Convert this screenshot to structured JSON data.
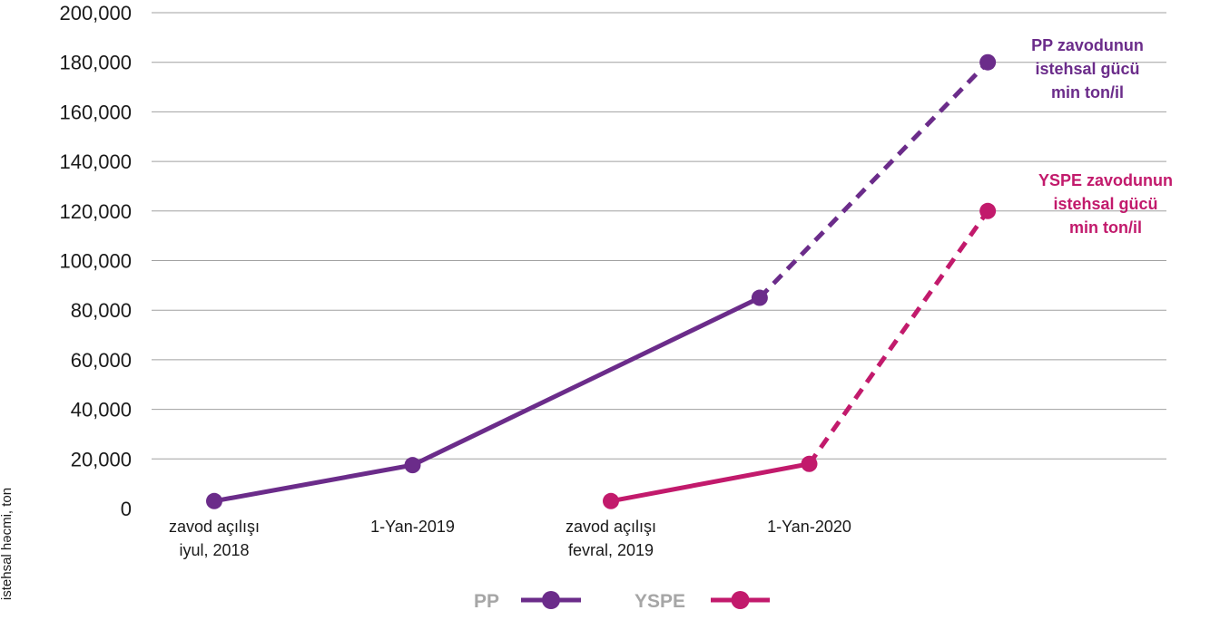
{
  "chart_data": {
    "type": "line",
    "ylabel": "istehsal həcmi, ton",
    "ylim": [
      0,
      200000
    ],
    "yticks": [
      "200,000",
      "180,000",
      "160,000",
      "140,000",
      "120,000",
      "100,000",
      "80,000",
      "60,000",
      "40,000",
      "20,000",
      "0"
    ],
    "grid": true,
    "legend_position": "bottom",
    "categories": [
      [
        "zavod açılışı",
        "iyul, 2018"
      ],
      [
        "1-Yan-2019"
      ],
      [
        "zavod açılışı",
        "fevral, 2019"
      ],
      [
        "1-Yan-2020"
      ]
    ],
    "series": [
      {
        "name": "PP",
        "color": "#6b2c8a",
        "actual": [
          {
            "x": 0,
            "y": 3000
          },
          {
            "x": 1,
            "y": 17500
          },
          {
            "x": 2.75,
            "y": 85000
          }
        ],
        "projected": [
          {
            "x": 2.75,
            "y": 85000
          },
          {
            "x": 3.9,
            "y": 180000
          }
        ]
      },
      {
        "name": "YSPE",
        "color": "#c21a6c",
        "actual": [
          {
            "x": 2,
            "y": 3000
          },
          {
            "x": 3,
            "y": 18000
          }
        ],
        "projected": [
          {
            "x": 3,
            "y": 18000
          },
          {
            "x": 3.9,
            "y": 120000
          }
        ]
      }
    ],
    "annotations": [
      {
        "lines": [
          "PP zavodunun",
          "istehsal gücü",
          "min ton/il"
        ],
        "color": "#6b2c8a"
      },
      {
        "lines": [
          "YSPE zavodunun",
          "istehsal gücü",
          "min ton/il"
        ],
        "color": "#c21a6c"
      }
    ]
  }
}
